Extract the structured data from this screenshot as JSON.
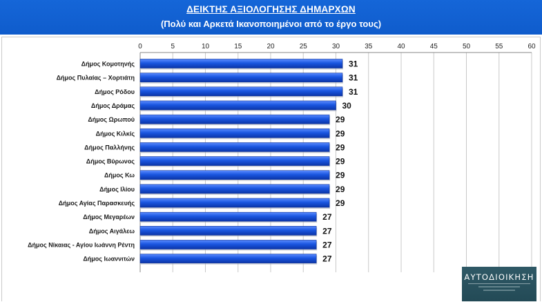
{
  "header": {
    "title": "ΔΕΙΚΤΗΣ ΑΞΙΟΛΟΓΗΣΗΣ ΔΗΜΑΡΧΩΝ",
    "subtitle": "(Πολύ και Αρκετά Ικανοποιημένοι από το έργο τους)",
    "background": "#1464d6"
  },
  "logo": {
    "brand": "ΑΥΤΟΔΙΟΙΚΗΣΗ",
    "background": "#2a5360"
  },
  "chart_data": {
    "type": "bar",
    "orientation": "horizontal",
    "categories": [
      "Δήμος Κομοτηνής",
      "Δήμος Πυλαίας – Χορτιάτη",
      "Δήμος Ρόδου",
      "Δήμος Δράμας",
      "Δήμος Ωρωπού",
      "Δήμος Κιλκίς",
      "Δήμος Παλλήνης",
      "Δήμος Βύρωνος",
      "Δήμος Κω",
      "Δήμος Ιλίου",
      "Δήμος Αγίας Παρασκευής",
      "Δήμος Μεγαρέων",
      "Δήμος Αιγάλεω",
      "Δήμος Νίκαιας - Αγίου Ιωάννη Ρέντη",
      "Δήμος Ιωαννιτών"
    ],
    "values": [
      31,
      31,
      31,
      30,
      29,
      29,
      29,
      29,
      29,
      29,
      29,
      27,
      27,
      27,
      27
    ],
    "xlim": [
      0,
      60
    ],
    "ticks": [
      0,
      5,
      10,
      15,
      20,
      25,
      30,
      35,
      40,
      45,
      50,
      55,
      60
    ],
    "axis_position": "top",
    "grid": true,
    "data_labels": true,
    "bar_color": "#1a56e0",
    "grid_color": "#c8c8c8"
  }
}
